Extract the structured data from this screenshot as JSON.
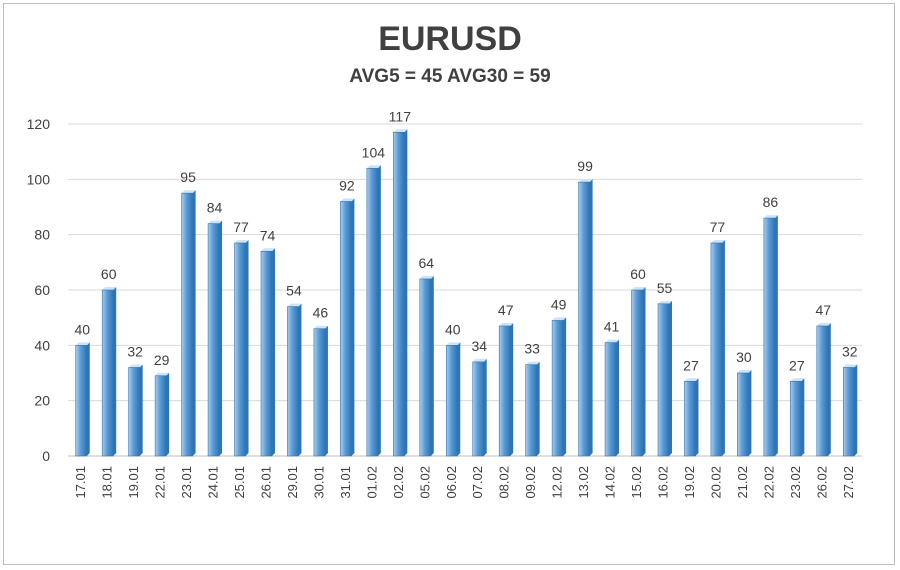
{
  "chart_data": {
    "type": "bar",
    "title": "EURUSD",
    "subtitle": "AVG5 = 45 AVG30 = 59",
    "categories": [
      "17.01",
      "18.01",
      "19.01",
      "22.01",
      "23.01",
      "24.01",
      "25.01",
      "26.01",
      "29.01",
      "30.01",
      "31.01",
      "01.02",
      "02.02",
      "05.02",
      "06.02",
      "07.02",
      "08.02",
      "09.02",
      "12.02",
      "13.02",
      "14.02",
      "15.02",
      "16.02",
      "19.02",
      "20.02",
      "21.02",
      "22.02",
      "23.02",
      "26.02",
      "27.02"
    ],
    "values": [
      40,
      60,
      32,
      29,
      95,
      84,
      77,
      74,
      54,
      46,
      92,
      104,
      117,
      64,
      40,
      34,
      47,
      33,
      49,
      99,
      41,
      60,
      55,
      27,
      77,
      30,
      86,
      27,
      47,
      32
    ],
    "ylim": [
      0,
      120
    ],
    "yticks": [
      0,
      20,
      40,
      60,
      80,
      100,
      120
    ],
    "grid": true,
    "legend": "none",
    "colors": {
      "bar_light": "#a9cdee",
      "bar_mid": "#5b9bd5",
      "bar_dark": "#2e75b6",
      "bar_top": "#cfe3f6",
      "grid": "#d9d9d9",
      "axis": "#bfbfbf"
    }
  }
}
